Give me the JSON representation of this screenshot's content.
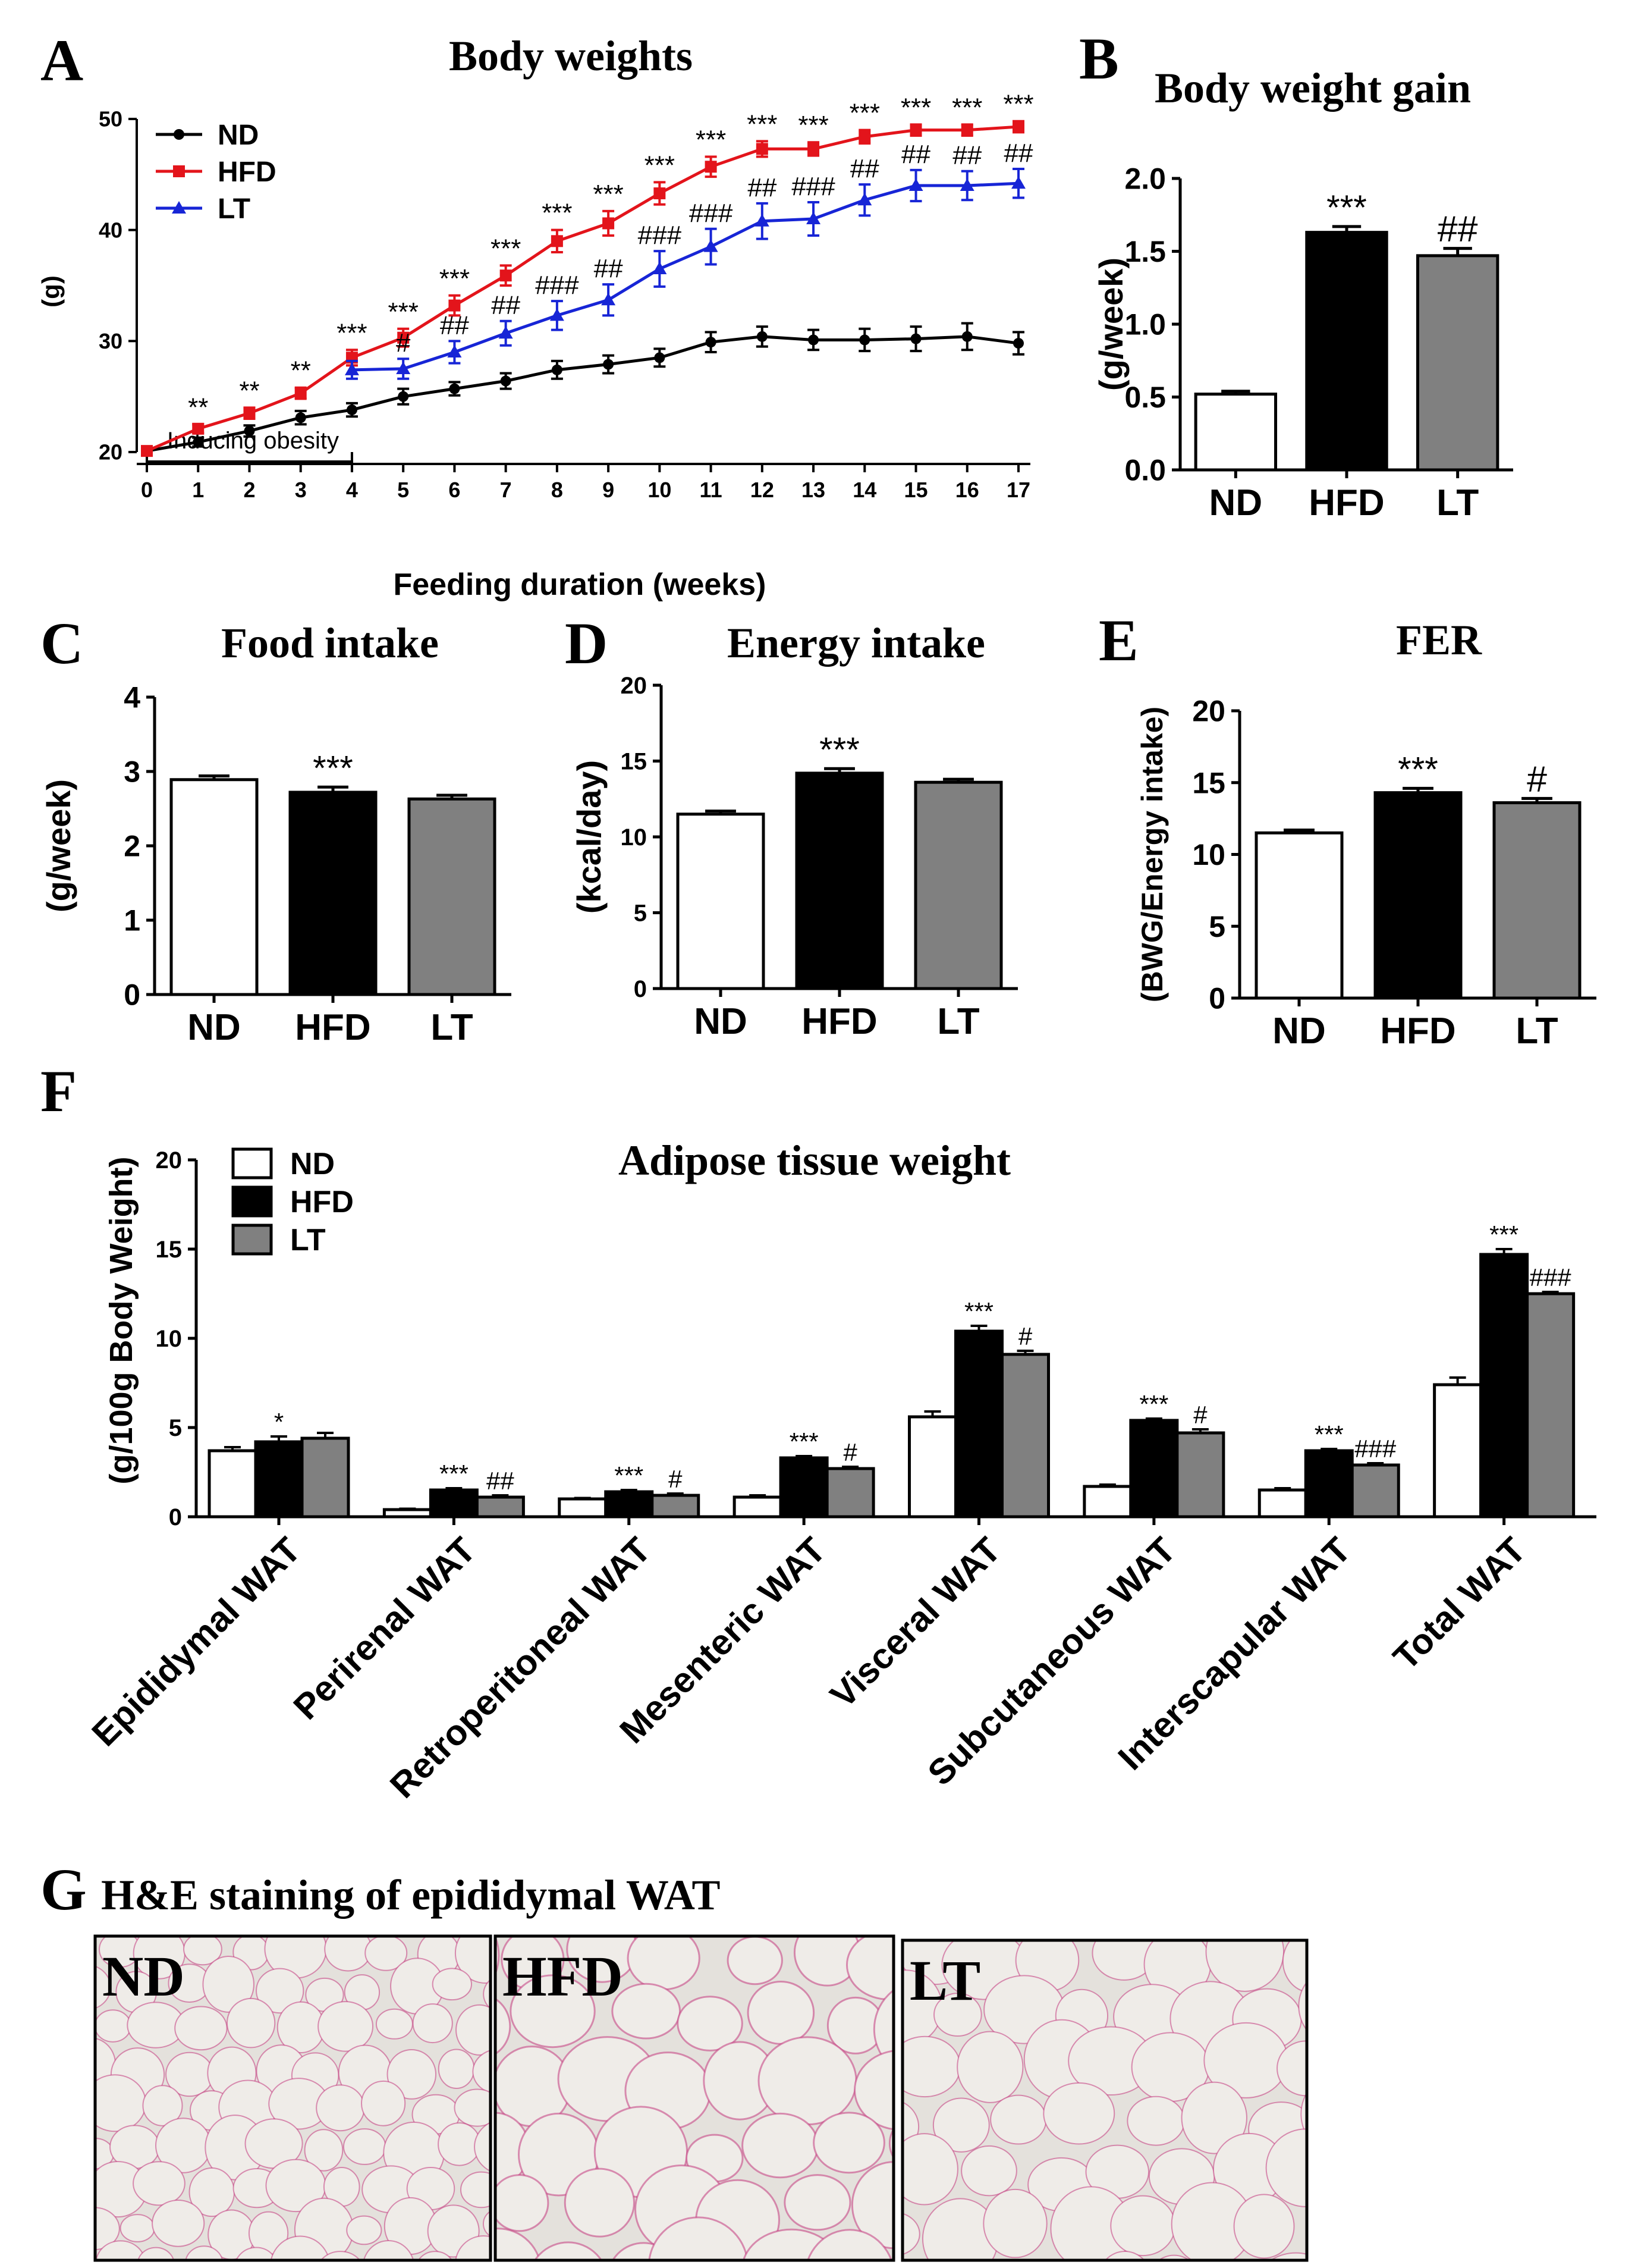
{
  "figure": {
    "panel_labels": [
      "A",
      "B",
      "C",
      "D",
      "E",
      "F",
      "G"
    ],
    "histology": {
      "title": "H&E staining of epididymal WAT",
      "panels": [
        "ND",
        "HFD",
        "LT"
      ],
      "colors": {
        "bg": "#e4e1dc",
        "cell": "#efece8",
        "stain": "#c23a7e"
      }
    }
  },
  "colors": {
    "ND": "#000000",
    "HFD": "#e3141b",
    "LT": "#1725d6",
    "bar_ND": "#ffffff",
    "bar_HFD": "#000000",
    "bar_LT": "#808080"
  },
  "chart_data": [
    {
      "id": "A",
      "type": "line",
      "title": "Body weights",
      "xlabel": "Feeding duration (weeks)",
      "ylabel": "(g)",
      "ylim": [
        20,
        50
      ],
      "yticks": [
        20,
        30,
        40,
        50
      ],
      "xticks": [
        0,
        1,
        2,
        3,
        4,
        5,
        6,
        7,
        8,
        9,
        10,
        11,
        12,
        13,
        14,
        15,
        16,
        17
      ],
      "annotation": "Inducing obesity",
      "annotation_range": [
        0,
        4
      ],
      "series": [
        {
          "name": "ND",
          "marker": "circle",
          "x": [
            0,
            1,
            2,
            3,
            4,
            5,
            6,
            7,
            8,
            9,
            10,
            11,
            12,
            13,
            14,
            15,
            16,
            17
          ],
          "values": [
            20.1,
            20.9,
            21.9,
            23.1,
            23.8,
            25.0,
            25.7,
            26.4,
            27.4,
            27.9,
            28.5,
            29.9,
            30.4,
            30.1,
            30.1,
            30.2,
            30.4,
            29.8
          ],
          "errors": [
            0.3,
            0.4,
            0.5,
            0.6,
            0.6,
            0.7,
            0.6,
            0.7,
            0.8,
            0.8,
            0.8,
            0.9,
            0.9,
            0.9,
            1.0,
            1.1,
            1.2,
            1.0
          ]
        },
        {
          "name": "HFD",
          "marker": "square",
          "x": [
            0,
            1,
            2,
            3,
            4,
            5,
            6,
            7,
            8,
            9,
            10,
            11,
            12,
            13,
            14,
            15,
            16,
            17
          ],
          "values": [
            20.1,
            22.1,
            23.5,
            25.3,
            28.5,
            30.3,
            33.2,
            35.9,
            39.0,
            40.6,
            43.3,
            45.7,
            47.3,
            47.3,
            48.4,
            49.0,
            49.0,
            49.3
          ],
          "errors": [
            0.3,
            0.4,
            0.5,
            0.5,
            0.7,
            0.8,
            0.9,
            0.9,
            1.0,
            1.1,
            1.0,
            0.9,
            0.7,
            0.6,
            0.6,
            0.5,
            0.5,
            0.5
          ],
          "sig": [
            "",
            "**",
            "**",
            "**",
            "***",
            "***",
            "***",
            "***",
            "***",
            "***",
            "***",
            "***",
            "***",
            "***",
            "***",
            "***",
            "***",
            "***"
          ]
        },
        {
          "name": "LT",
          "marker": "triangle",
          "x": [
            4,
            5,
            6,
            7,
            8,
            9,
            10,
            11,
            12,
            13,
            14,
            15,
            16,
            17
          ],
          "values": [
            27.4,
            27.5,
            29.0,
            30.7,
            32.3,
            33.7,
            36.5,
            38.5,
            40.8,
            41.0,
            42.7,
            44.0,
            44.0,
            44.2
          ],
          "errors": [
            0.8,
            0.9,
            1.0,
            1.1,
            1.3,
            1.4,
            1.6,
            1.6,
            1.6,
            1.5,
            1.4,
            1.4,
            1.3,
            1.3
          ],
          "sig": [
            "",
            "#",
            "##",
            "##",
            "###",
            "##",
            "###",
            "###",
            "##",
            "###",
            "##",
            "##",
            "##",
            "##"
          ]
        }
      ],
      "legend": [
        "ND",
        "HFD",
        "LT"
      ]
    },
    {
      "id": "B",
      "type": "bar",
      "title": "Body weight gain",
      "ylabel": "(g/week)",
      "categories": [
        "ND",
        "HFD",
        "LT"
      ],
      "values": [
        0.52,
        1.63,
        1.47
      ],
      "errors": [
        0.02,
        0.04,
        0.05
      ],
      "sig": [
        "",
        "***",
        "##"
      ],
      "ylim": [
        0,
        2.0
      ],
      "yticks": [
        "0.0",
        "0.5",
        "1.0",
        "1.5",
        "2.0"
      ]
    },
    {
      "id": "C",
      "type": "bar",
      "title": "Food intake",
      "ylabel": "(g/week)",
      "categories": [
        "ND",
        "HFD",
        "LT"
      ],
      "values": [
        2.89,
        2.72,
        2.63
      ],
      "errors": [
        0.05,
        0.07,
        0.05
      ],
      "sig": [
        "",
        "***",
        ""
      ],
      "ylim": [
        0,
        4
      ],
      "yticks": [
        "0",
        "1",
        "2",
        "3",
        "4"
      ]
    },
    {
      "id": "D",
      "type": "bar",
      "title": "Energy intake",
      "ylabel": "(kcal/day)",
      "categories": [
        "ND",
        "HFD",
        "LT"
      ],
      "values": [
        11.5,
        14.2,
        13.6
      ],
      "errors": [
        0.2,
        0.3,
        0.2
      ],
      "sig": [
        "",
        "***",
        ""
      ],
      "ylim": [
        0,
        20
      ],
      "yticks": [
        "0",
        "5",
        "10",
        "15",
        "20"
      ]
    },
    {
      "id": "E",
      "type": "bar",
      "title": "FER",
      "ylabel": "(BWG/Energy intake)",
      "categories": [
        "ND",
        "HFD",
        "LT"
      ],
      "values": [
        11.5,
        14.3,
        13.6
      ],
      "errors": [
        0.2,
        0.3,
        0.3
      ],
      "sig": [
        "",
        "***",
        "#"
      ],
      "ylim": [
        0,
        20
      ],
      "yticks": [
        "0",
        "5",
        "10",
        "15",
        "20"
      ]
    },
    {
      "id": "F",
      "type": "bar",
      "title": "Adipose tissue weight",
      "ylabel": "(g/100g Body Weight)",
      "categories": [
        "Epididymal WAT",
        "Perirenal WAT",
        "Retroperitoneal WAT",
        "Mesenteric WAT",
        "Visceral WAT",
        "Subcutaneous WAT",
        "Interscapular WAT",
        "Total WAT"
      ],
      "series": [
        {
          "name": "ND",
          "values": [
            3.7,
            0.4,
            1.0,
            1.1,
            5.6,
            1.7,
            1.5,
            7.4
          ],
          "errors": [
            0.2,
            0.05,
            0.05,
            0.1,
            0.3,
            0.1,
            0.1,
            0.4
          ],
          "sig": [
            "",
            "",
            "",
            "",
            "",
            "",
            "",
            ""
          ]
        },
        {
          "name": "HFD",
          "values": [
            4.2,
            1.5,
            1.4,
            3.3,
            10.4,
            5.4,
            3.7,
            14.7
          ],
          "errors": [
            0.3,
            0.1,
            0.1,
            0.1,
            0.3,
            0.1,
            0.1,
            0.3
          ],
          "sig": [
            "*",
            "***",
            "***",
            "***",
            "***",
            "***",
            "***",
            "***"
          ]
        },
        {
          "name": "LT",
          "values": [
            4.4,
            1.1,
            1.2,
            2.7,
            9.1,
            4.7,
            2.9,
            12.5
          ],
          "errors": [
            0.3,
            0.1,
            0.1,
            0.1,
            0.2,
            0.2,
            0.1,
            0.1
          ],
          "sig": [
            "",
            "##",
            "#",
            "#",
            "#",
            "#",
            "###",
            "###"
          ]
        }
      ],
      "ylim": [
        0,
        20
      ],
      "yticks": [
        "0",
        "5",
        "10",
        "15",
        "20"
      ],
      "legend": [
        "ND",
        "HFD",
        "LT"
      ]
    }
  ]
}
